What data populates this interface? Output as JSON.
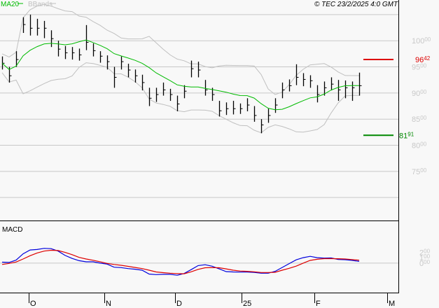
{
  "header": {
    "legend_ma": "MA20",
    "legend_bb": "BBands",
    "copyright": "© TEC 23/2/2025 4:0 GMT"
  },
  "colors": {
    "ma": "#00bb00",
    "bb": "#c0c0c0",
    "bars": "#000000",
    "resistance": "#dd0000",
    "support": "#008800",
    "macd": "#0000dd",
    "signal": "#dd0000",
    "grid": "#c8c8c8"
  },
  "chart_data": [
    {
      "type": "bar",
      "subtype": "ohlc-bars with MA20 and Bollinger Bands",
      "ylim": [
        6560,
        10780
      ],
      "y_ticks": [
        {
          "main": "100",
          "sub": "00",
          "v": 10000
        },
        {
          "main": "95",
          "sub": "00",
          "v": 9500
        },
        {
          "main": "90",
          "sub": "00",
          "v": 9000
        },
        {
          "main": "85",
          "sub": "00",
          "v": 8500
        },
        {
          "main": "80",
          "sub": "00",
          "v": 8000
        },
        {
          "main": "75",
          "sub": "00",
          "v": 7500
        }
      ],
      "grid": true,
      "levels": [
        {
          "name": "resistance",
          "value": 9642,
          "main": "96",
          "sub": "42"
        },
        {
          "name": "support",
          "value": 8191,
          "main": "81",
          "sub": "91"
        }
      ],
      "close": [
        9570,
        9330,
        9640,
        10310,
        10240,
        10240,
        10240,
        10040,
        9840,
        9770,
        9770,
        9730,
        9970,
        9810,
        9705,
        9600,
        9300,
        9600,
        9440,
        9330,
        9200,
        8900,
        8970,
        9060,
        8970,
        8790,
        9035,
        9465,
        9440,
        9060,
        8970,
        8660,
        8700,
        8700,
        8700,
        8770,
        8570,
        8390,
        8570,
        8770,
        9060,
        9140,
        9300,
        9260,
        9235,
        8970,
        9100,
        9170,
        9060,
        9100,
        9100,
        9140
      ],
      "high": [
        9700,
        9500,
        9800,
        10450,
        10500,
        10420,
        10380,
        10200,
        10000,
        9900,
        9880,
        9850,
        10300,
        9950,
        9800,
        9720,
        9500,
        9700,
        9560,
        9450,
        9350,
        9100,
        9100,
        9200,
        9080,
        8950,
        9150,
        9620,
        9600,
        9250,
        9100,
        8850,
        8820,
        8850,
        8800,
        8900,
        8750,
        8500,
        8700,
        8900,
        9200,
        9260,
        9550,
        9380,
        9340,
        9150,
        9220,
        9300,
        9250,
        9240,
        9220,
        9390
      ],
      "low": [
        9450,
        9200,
        9500,
        10150,
        10100,
        10100,
        10050,
        9880,
        9700,
        9650,
        9640,
        9620,
        9820,
        9700,
        9580,
        9450,
        9100,
        9450,
        9300,
        9200,
        9050,
        8750,
        8830,
        8950,
        8850,
        8650,
        8900,
        9300,
        9300,
        8950,
        8850,
        8550,
        8580,
        8590,
        8600,
        8650,
        8450,
        8230,
        8430,
        8620,
        8900,
        9030,
        9150,
        9130,
        9100,
        8820,
        8950,
        9050,
        8850,
        8900,
        8850,
        8950
      ]
    },
    {
      "type": "line",
      "title": "MACD",
      "ylim": [
        -540,
        780
      ],
      "y_ticks": [
        {
          "main": "2",
          "sub": "00",
          "v": 200
        },
        {
          "main": "1",
          "sub": "00",
          "v": 100
        },
        {
          "main": "0",
          "sub": "00",
          "v": 0
        }
      ],
      "series": [
        {
          "key": "macd",
          "values": [
            17,
            12,
            55,
            170,
            240,
            250,
            270,
            265,
            220,
            140,
            85,
            45,
            24,
            24,
            0,
            -18,
            -75,
            -82,
            -100,
            -112,
            -130,
            -200,
            -210,
            -205,
            -205,
            -222,
            -190,
            -120,
            -45,
            -30,
            -57,
            -105,
            -155,
            -162,
            -165,
            -165,
            -170,
            -185,
            -185,
            -150,
            -80,
            -10,
            60,
            100,
            124,
            100,
            92,
            95,
            68,
            62,
            50,
            32
          ]
        },
        {
          "key": "signal",
          "values": [
            -25,
            -5,
            20,
            75,
            135,
            185,
            220,
            235,
            230,
            195,
            155,
            105,
            75,
            52,
            25,
            -5,
            -25,
            -40,
            -60,
            -80,
            -100,
            -130,
            -162,
            -175,
            -185,
            -192,
            -195,
            -160,
            -115,
            -85,
            -82,
            -85,
            -105,
            -130,
            -145,
            -150,
            -160,
            -172,
            -172,
            -168,
            -130,
            -95,
            -55,
            0,
            50,
            70,
            82,
            82,
            80,
            75,
            65,
            53
          ]
        }
      ]
    }
  ],
  "x_axis": {
    "labels": [
      "O",
      "N",
      "D",
      "25",
      "F",
      "M"
    ]
  }
}
